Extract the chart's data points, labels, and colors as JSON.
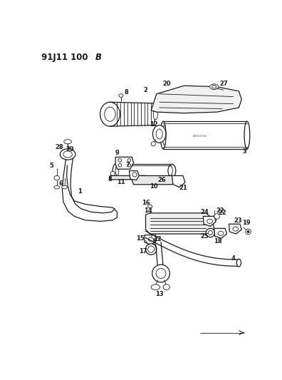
{
  "title": "91J11 100 B",
  "bg_color": "#ffffff",
  "line_color": "#1a1a1a",
  "fig_width": 3.96,
  "fig_height": 5.33,
  "dpi": 100
}
